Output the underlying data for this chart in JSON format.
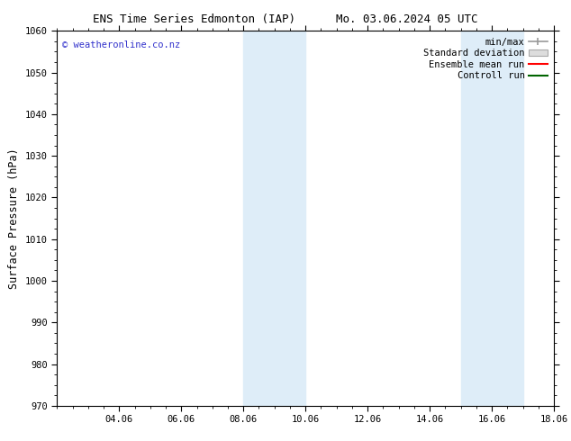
{
  "title_left": "ENS Time Series Edmonton (IAP)",
  "title_right": "Mo. 03.06.2024 05 UTC",
  "ylabel": "Surface Pressure (hPa)",
  "ylim": [
    970,
    1060
  ],
  "yticks": [
    970,
    980,
    990,
    1000,
    1010,
    1020,
    1030,
    1040,
    1050,
    1060
  ],
  "xlim": [
    0,
    16
  ],
  "xtick_labels": [
    "04.06",
    "06.06",
    "08.06",
    "10.06",
    "12.06",
    "14.06",
    "16.06",
    "18.06"
  ],
  "xtick_positions": [
    2,
    4,
    6,
    8,
    10,
    12,
    14,
    16
  ],
  "shaded_regions": [
    {
      "x_start": 6,
      "x_end": 8
    },
    {
      "x_start": 13,
      "x_end": 15
    }
  ],
  "shaded_color": "#deedf8",
  "watermark_text": "© weatheronline.co.nz",
  "watermark_color": "#3333cc",
  "legend_items": [
    {
      "label": "min/max",
      "color": "#aaaaaa",
      "type": "errorbar"
    },
    {
      "label": "Standard deviation",
      "color": "#cccccc",
      "type": "fill"
    },
    {
      "label": "Ensemble mean run",
      "color": "#ff0000",
      "type": "line"
    },
    {
      "label": "Controll run",
      "color": "#008000",
      "type": "line"
    }
  ],
  "background_color": "#ffffff",
  "font_family": "DejaVu Sans Mono"
}
